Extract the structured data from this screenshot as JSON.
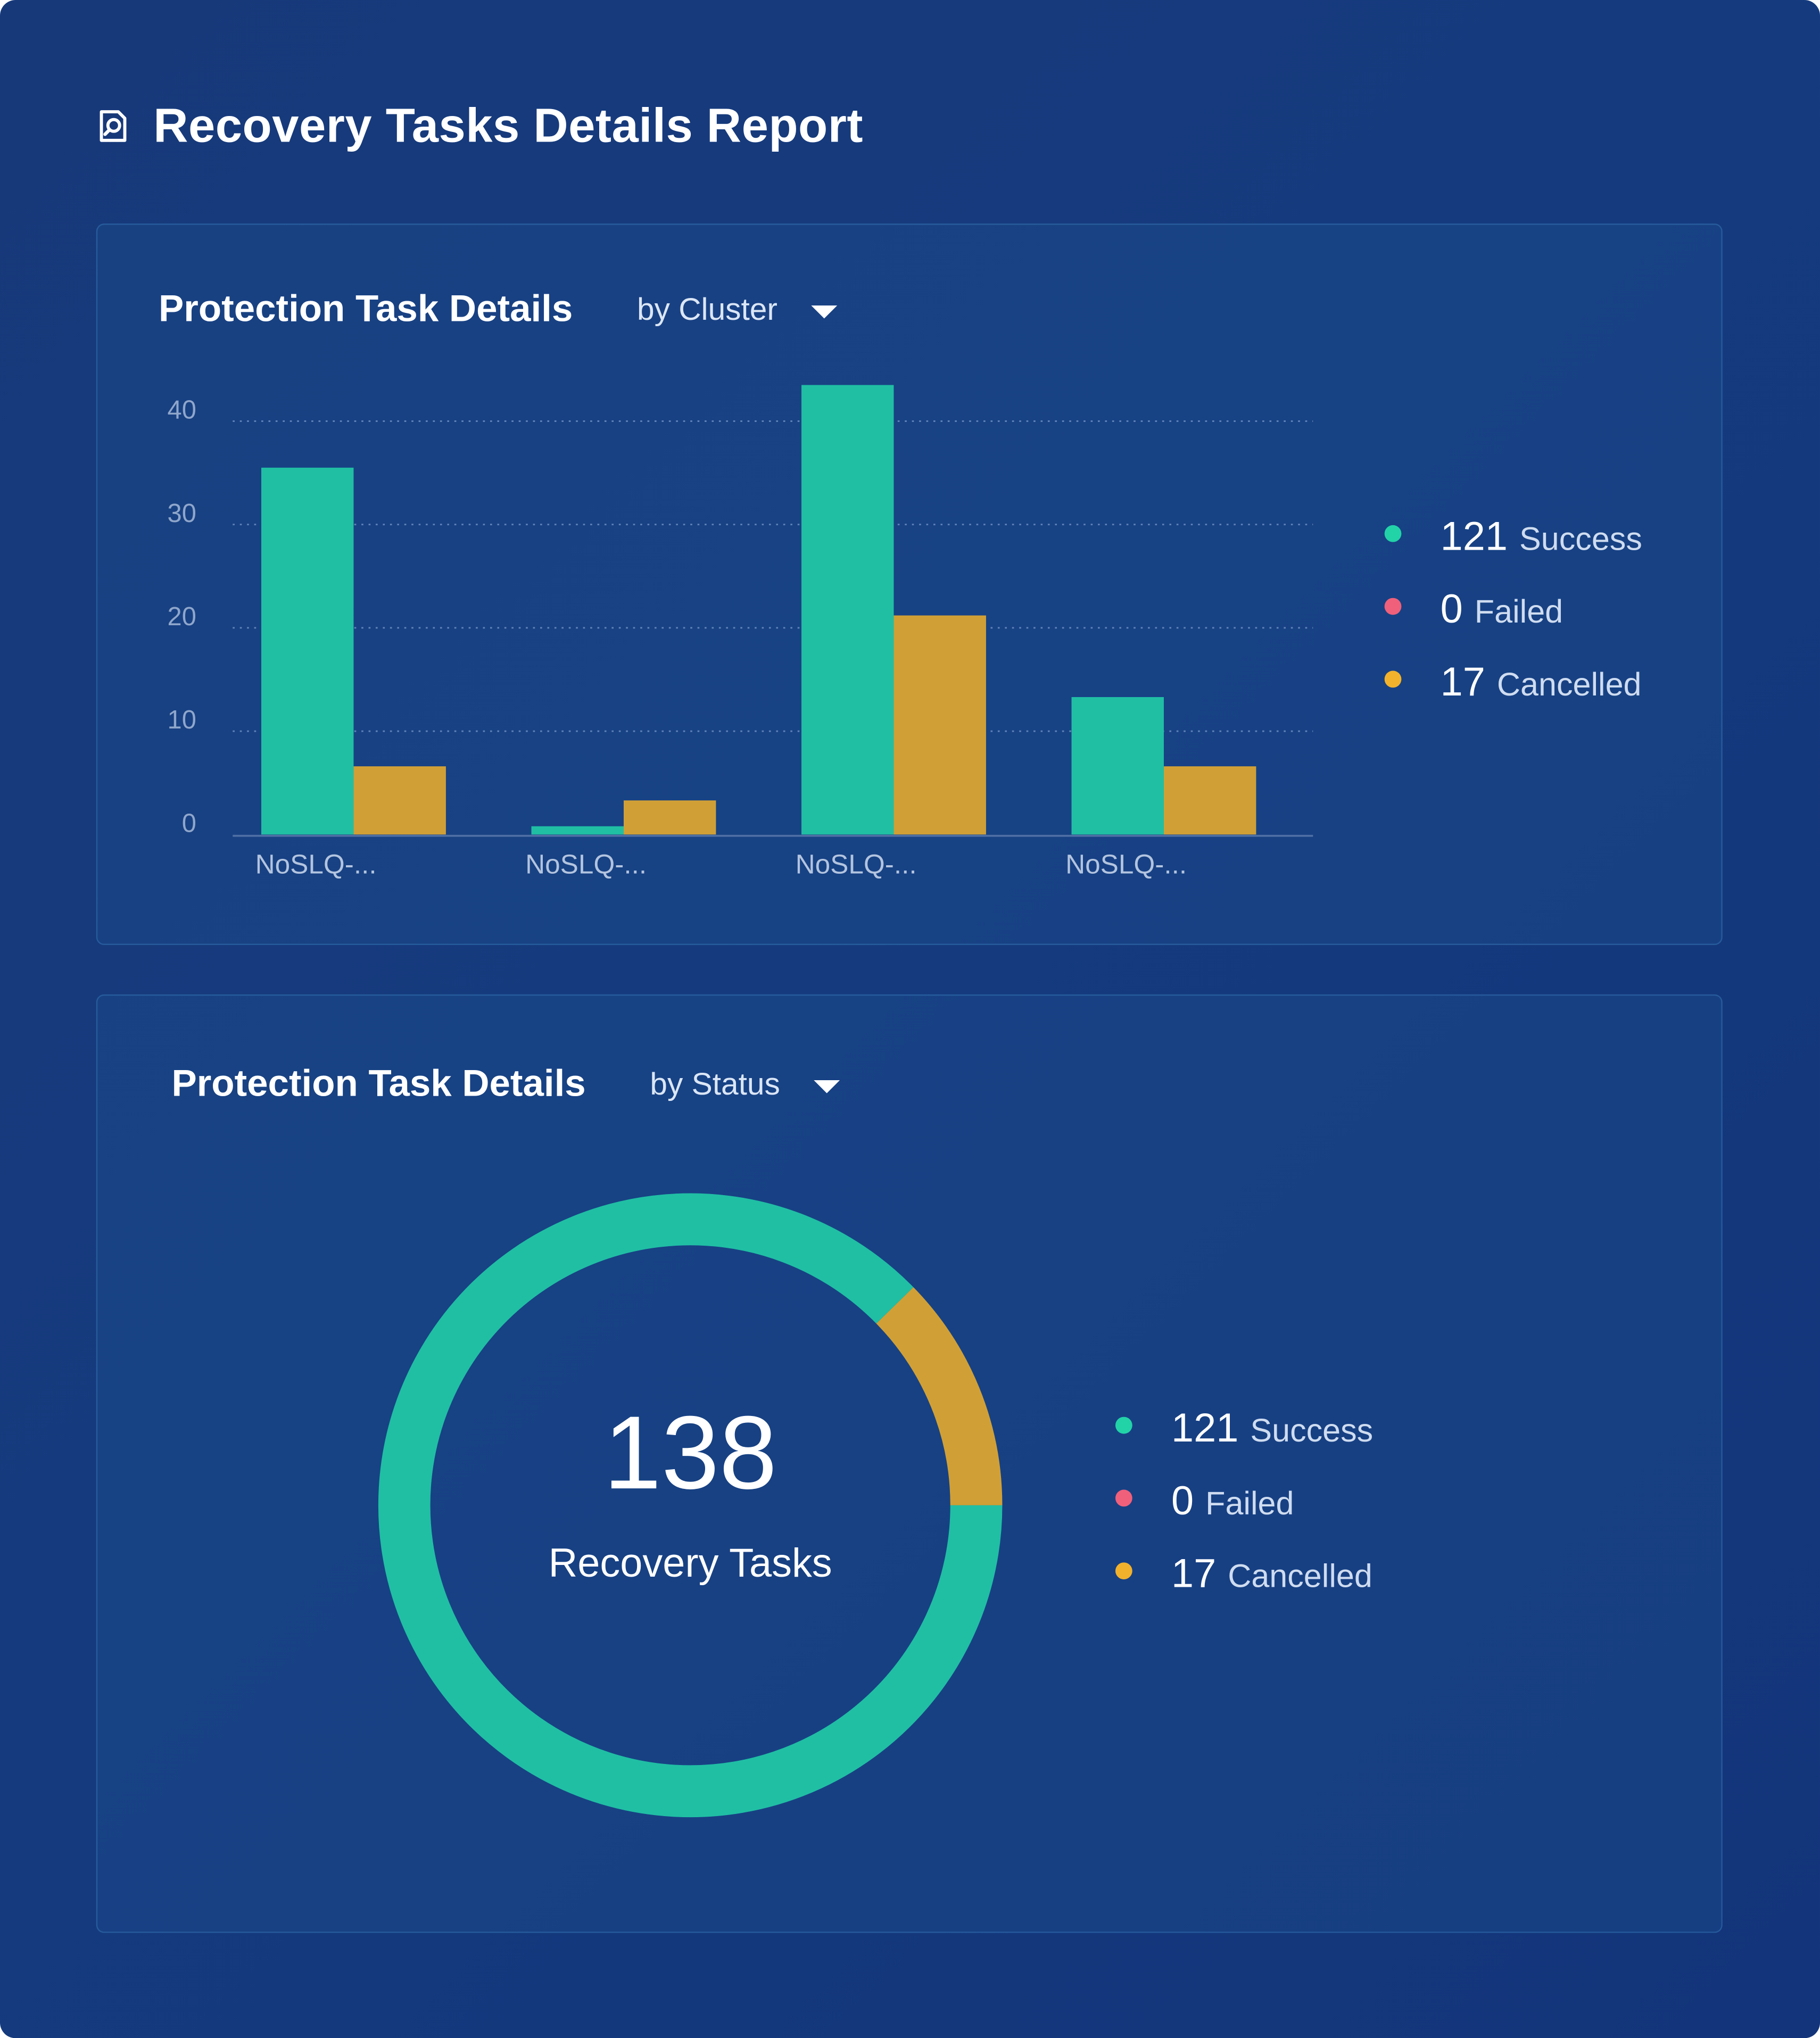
{
  "report": {
    "title": "Recovery Tasks Details Report"
  },
  "colors": {
    "success": "#20bfa4",
    "failed": "#f0607a",
    "cancelled": "#d0a036",
    "cancelled_dot": "#f2b22c",
    "success_dot": "#22d3a8"
  },
  "cluster_panel": {
    "title": "Protection Task Details",
    "dropdown_label": "by Cluster",
    "legend": [
      {
        "count": "121",
        "label": "Success",
        "color_key": "success_dot"
      },
      {
        "count": "0",
        "label": "Failed",
        "color_key": "failed"
      },
      {
        "count": "17",
        "label": "Cancelled",
        "color_key": "cancelled_dot"
      }
    ]
  },
  "status_panel": {
    "title": "Protection Task Details",
    "dropdown_label": "by Status",
    "total": "138",
    "total_caption": "Recovery Tasks",
    "legend": [
      {
        "count": "121",
        "label": "Success",
        "color_key": "success_dot"
      },
      {
        "count": "0",
        "label": "Failed",
        "color_key": "failed"
      },
      {
        "count": "17",
        "label": "Cancelled",
        "color_key": "cancelled_dot"
      }
    ]
  },
  "chart_data": [
    {
      "type": "bar",
      "title": "Protection Task Details",
      "categories": [
        "NoSLQ-...",
        "NoSLQ-...",
        "NoSLQ-...",
        "NoSLQ-..."
      ],
      "series": [
        {
          "name": "Success",
          "values": [
            35.5,
            0.8,
            43.5,
            13.3
          ]
        },
        {
          "name": "Cancelled",
          "values": [
            6.6,
            3.3,
            21.2,
            6.6
          ]
        }
      ],
      "yticks": [
        0,
        10,
        20,
        30,
        40
      ],
      "ylim": [
        0,
        40
      ],
      "grid": true,
      "legend": "right"
    },
    {
      "type": "pie",
      "title": "Protection Task Details",
      "categories": [
        "Success",
        "Failed",
        "Cancelled"
      ],
      "values": [
        121,
        0,
        17
      ],
      "donut": true,
      "legend": "right"
    }
  ]
}
